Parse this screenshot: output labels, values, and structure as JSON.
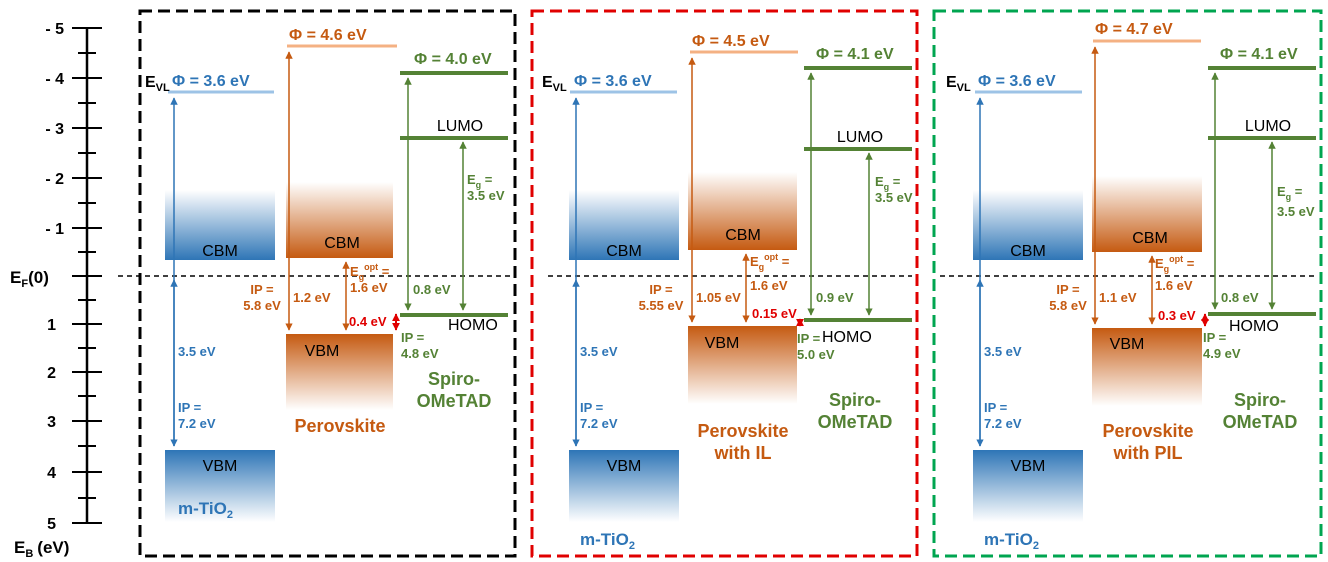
{
  "colors": {
    "tio2": "#2e75b6",
    "perovskite": "#c55a11",
    "spiro": "#548235",
    "offset": "#e00000",
    "panel_1_border": "#000000",
    "panel_2_border": "#e00000",
    "panel_3_border": "#00a550"
  },
  "axis": {
    "fermi_label": "E",
    "fermi_sub": "F",
    "fermi_suffix": "(0)",
    "eb_label": "E",
    "eb_sub": "B",
    "eb_unit": "(eV)",
    "ticks": [
      "- 5",
      "- 4",
      "- 3",
      "- 2",
      "- 1",
      "1",
      "2",
      "3",
      "4",
      "5"
    ]
  },
  "common": {
    "evl_main": "E",
    "evl_sub": "VL",
    "cbm": "CBM",
    "vbm": "VBM",
    "lumo": "LUMO",
    "homo": "HOMO",
    "tio2_main": "m-TiO",
    "tio2_sub": "2",
    "eg_main": "E",
    "eg_sub": "g",
    "eg_eq": " =",
    "egopt_sub": "g",
    "egopt_sup": "opt",
    "ip": "IP ="
  },
  "panels": [
    {
      "tio2_phi": "Φ = 3.6 eV",
      "tio2_gap": "3.5 eV",
      "tio2_ip": "7.2 eV",
      "pvk_phi": "Φ = 4.6 eV",
      "pvk_ip": "5.8 eV",
      "pvk_ef_vbm": "1.2 eV",
      "pvk_egopt": "1.6 eV",
      "offset": "0.4 eV",
      "pvk_name_1": "Perovskite",
      "pvk_name_2": "",
      "spiro_phi": "Φ = 4.0 eV",
      "spiro_eg": "3.5 eV",
      "spiro_ef_homo": "0.8 eV",
      "spiro_ip": "4.8 eV",
      "spiro_name_1": "Spiro-",
      "spiro_name_2": "OMeTAD"
    },
    {
      "tio2_phi": "Φ = 3.6 eV",
      "tio2_gap": "3.5 eV",
      "tio2_ip": "7.2 eV",
      "pvk_phi": "Φ = 4.5 eV",
      "pvk_ip": "5.55 eV",
      "pvk_ef_vbm": "1.05 eV",
      "pvk_egopt": "1.6 eV",
      "offset": "0.15 eV",
      "pvk_name_1": "Perovskite",
      "pvk_name_2": "with IL",
      "spiro_phi": "Φ = 4.1 eV",
      "spiro_eg": "3.5 eV",
      "spiro_ef_homo": "0.9 eV",
      "spiro_ip": "5.0 eV",
      "spiro_name_1": "Spiro-",
      "spiro_name_2": "OMeTAD"
    },
    {
      "tio2_phi": "Φ = 3.6 eV",
      "tio2_gap": "3.5 eV",
      "tio2_ip": "7.2 eV",
      "pvk_phi": "Φ = 4.7 eV",
      "pvk_ip": "5.8 eV",
      "pvk_ef_vbm": "1.1 eV",
      "pvk_egopt": "1.6 eV",
      "offset": "0.3 eV",
      "pvk_name_1": "Perovskite",
      "pvk_name_2": "with PIL",
      "spiro_phi": "Φ = 4.1 eV",
      "spiro_eg": "3.5 eV",
      "spiro_ef_homo": "0.8 eV",
      "spiro_ip": "4.9 eV",
      "spiro_name_1": "Spiro-",
      "spiro_name_2": "OMeTAD"
    }
  ]
}
